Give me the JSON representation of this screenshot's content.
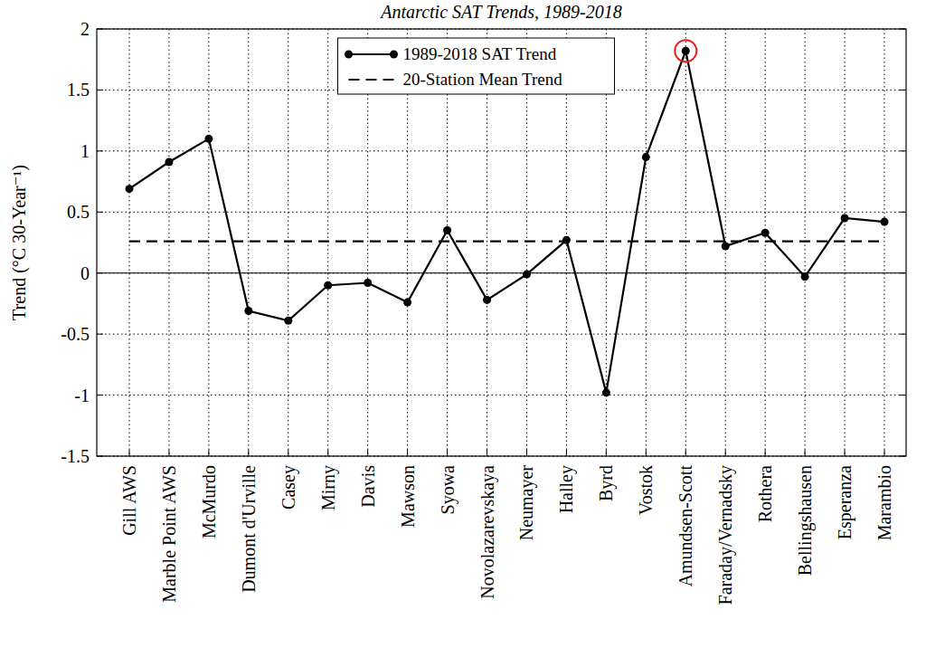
{
  "chart_data": {
    "type": "line",
    "title": "Antarctic SAT Trends, 1989-2018",
    "y_label": "Trend (°C 30-Year⁻¹)",
    "categories": [
      "Gill AWS",
      "Marble Point AWS",
      "McMurdo",
      "Dumont d'Urville",
      "Casey",
      "Mirny",
      "Davis",
      "Mawson",
      "Syowa",
      "Novolazarevskaya",
      "Neumayer",
      "Halley",
      "Byrd",
      "Vostok",
      "Amundsen-Scott",
      "Faraday/Vernadsky",
      "Rothera",
      "Bellingshausen",
      "Esperanza",
      "Marambio"
    ],
    "series": [
      {
        "name": "1989-2018 SAT Trend",
        "color": "#000000",
        "marker": "circle",
        "line_style": "solid",
        "values": [
          0.69,
          0.91,
          1.1,
          -0.31,
          -0.39,
          -0.1,
          -0.08,
          -0.24,
          0.35,
          -0.22,
          -0.01,
          0.27,
          -0.98,
          0.95,
          1.82,
          0.22,
          0.33,
          -0.03,
          0.45,
          0.42
        ]
      },
      {
        "name": "20-Station Mean Trend",
        "color": "#000000",
        "marker": "none",
        "line_style": "dashed",
        "values": [
          0.26,
          0.26,
          0.26,
          0.26,
          0.26,
          0.26,
          0.26,
          0.26,
          0.26,
          0.26,
          0.26,
          0.26,
          0.26,
          0.26,
          0.26,
          0.26,
          0.26,
          0.26,
          0.26,
          0.26
        ]
      }
    ],
    "ylim": [
      -1.5,
      2
    ],
    "yticks": [
      -1.5,
      -1,
      -0.5,
      0,
      0.5,
      1,
      1.5,
      2
    ],
    "grid": true,
    "legend": "upper center"
  }
}
